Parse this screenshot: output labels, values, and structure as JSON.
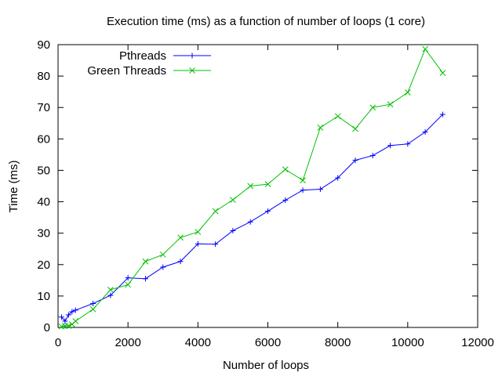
{
  "chart_data": {
    "type": "line",
    "title": "Execution time (ms) as a function of number of loops (1 core)",
    "xlabel": "Number of loops",
    "ylabel": "Time (ms)",
    "xlim": [
      0,
      12000
    ],
    "ylim": [
      0,
      90
    ],
    "x_ticks": [
      0,
      2000,
      4000,
      6000,
      8000,
      10000,
      12000
    ],
    "y_ticks": [
      0,
      10,
      20,
      30,
      40,
      50,
      60,
      70,
      80,
      90
    ],
    "grid": false,
    "legend_position": "top-left",
    "series": [
      {
        "name": "Pthreads",
        "color": "#0000ff",
        "marker": "plus",
        "x": [
          100,
          200,
          300,
          400,
          500,
          1000,
          1500,
          2000,
          2500,
          3000,
          3500,
          4000,
          4500,
          5000,
          5500,
          6000,
          6500,
          7000,
          7500,
          8000,
          8500,
          9000,
          9500,
          10000,
          10500,
          11000
        ],
        "y": [
          3.3,
          2.0,
          4.0,
          5.0,
          5.5,
          7.6,
          10.2,
          15.8,
          15.5,
          19.2,
          21.0,
          26.6,
          26.5,
          30.8,
          33.6,
          37.0,
          40.5,
          43.7,
          44.0,
          47.6,
          53.2,
          54.7,
          57.9,
          58.4,
          62.2,
          67.8
        ]
      },
      {
        "name": "Green Threads",
        "color": "#00c000",
        "marker": "cross",
        "x": [
          100,
          200,
          300,
          400,
          500,
          1000,
          1500,
          2000,
          2500,
          3000,
          3500,
          4000,
          4500,
          5000,
          5500,
          6000,
          6500,
          7000,
          7500,
          8000,
          8500,
          9000,
          9500,
          10000,
          10500,
          11000
        ],
        "y": [
          0.3,
          0.5,
          0.5,
          1.0,
          2.0,
          5.8,
          12.0,
          13.6,
          21.0,
          23.2,
          28.6,
          30.4,
          37.0,
          40.6,
          45.0,
          45.6,
          50.3,
          46.8,
          63.6,
          67.2,
          63.2,
          70.0,
          71.0,
          74.8,
          88.6,
          81.0
        ]
      }
    ]
  }
}
